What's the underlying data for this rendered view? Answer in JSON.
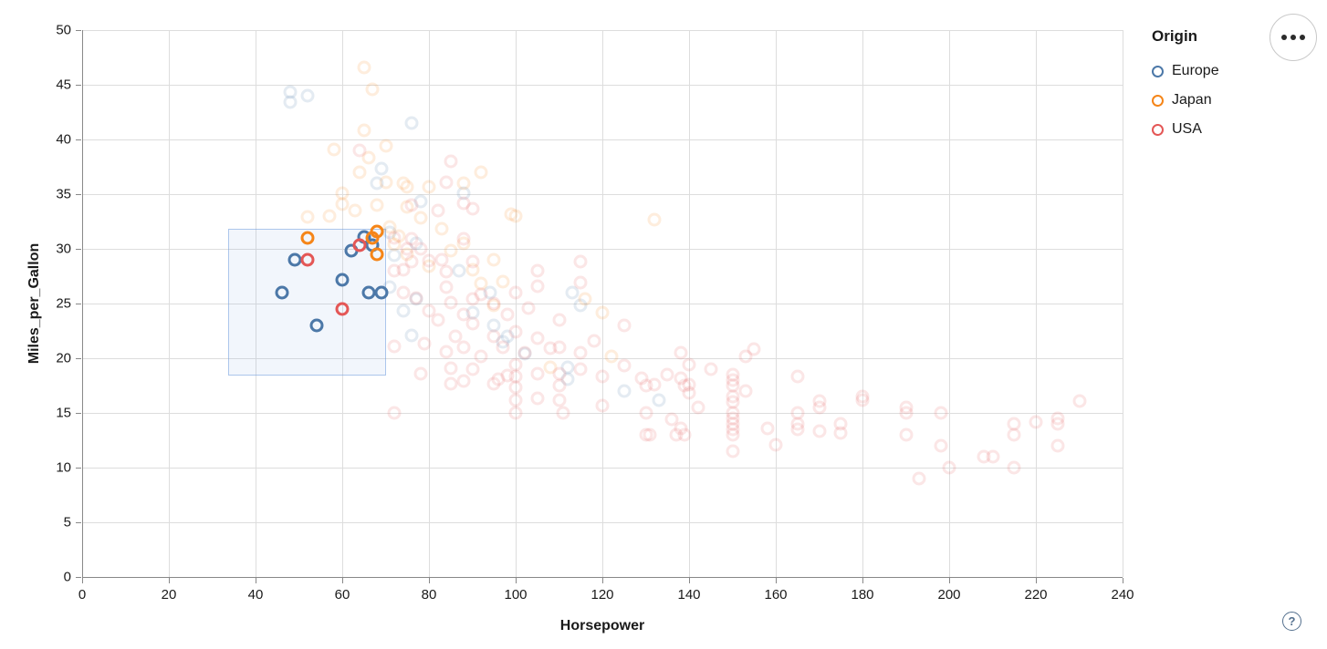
{
  "controls": {
    "menu_button_name": "more options",
    "help_label": "?"
  },
  "chart_data": {
    "type": "scatter",
    "title": "",
    "xlabel": "Horsepower",
    "ylabel": "Miles_per_Gallon",
    "x_domain": [
      0,
      240
    ],
    "y_domain": [
      0,
      50
    ],
    "x_ticks": [
      0,
      20,
      40,
      60,
      80,
      100,
      120,
      140,
      160,
      180,
      200,
      220,
      240
    ],
    "y_ticks": [
      0,
      5,
      10,
      15,
      20,
      25,
      30,
      35,
      40,
      45,
      50
    ],
    "grid": true,
    "legend": {
      "title": "Origin",
      "position": "top-right",
      "entries": [
        {
          "label": "Europe",
          "color": "#4c78a8"
        },
        {
          "label": "Japan",
          "color": "#f58518"
        },
        {
          "label": "USA",
          "color": "#e45756"
        }
      ]
    },
    "brush_selection": {
      "x": [
        33.7,
        70.1
      ],
      "y": [
        18.4,
        31.8
      ]
    },
    "point_style": {
      "shape": "open-circle",
      "faded_opacity": 0.15,
      "selected_opacity": 1
    },
    "series": [
      {
        "name": "Europe",
        "color": "#4c78a8",
        "points": [
          [
            49,
            29,
            1
          ],
          [
            46,
            26,
            1
          ],
          [
            60,
            27.2,
            1
          ],
          [
            54,
            23,
            1
          ],
          [
            66,
            26,
            1
          ],
          [
            69,
            26,
            1
          ],
          [
            62,
            29.8,
            1
          ],
          [
            65,
            31.1,
            1
          ],
          [
            67,
            30.3,
            1
          ],
          [
            48,
            44.3,
            0
          ],
          [
            48,
            43.4,
            0
          ],
          [
            52,
            44,
            0
          ],
          [
            76,
            41.5,
            0
          ],
          [
            69,
            37.3,
            0
          ],
          [
            68,
            36,
            0
          ],
          [
            88,
            35.1,
            0
          ],
          [
            78,
            34.3,
            0
          ],
          [
            71,
            31.5,
            0
          ],
          [
            77,
            30.5,
            0
          ],
          [
            72,
            29.4,
            0
          ],
          [
            71,
            26.5,
            0
          ],
          [
            77,
            25.4,
            0
          ],
          [
            74,
            24.3,
            0
          ],
          [
            87,
            28,
            0
          ],
          [
            94,
            26,
            0
          ],
          [
            113,
            26,
            0
          ],
          [
            115,
            24.8,
            0
          ],
          [
            95,
            23,
            0
          ],
          [
            90,
            24.2,
            0
          ],
          [
            98,
            22,
            0
          ],
          [
            97,
            21.5,
            0
          ],
          [
            76,
            22.1,
            0
          ],
          [
            102,
            20.4,
            0
          ],
          [
            112,
            19.2,
            0
          ],
          [
            112,
            18.1,
            0
          ],
          [
            125,
            17,
            0
          ],
          [
            133,
            16.2,
            0
          ]
        ]
      },
      {
        "name": "Japan",
        "color": "#f58518",
        "points": [
          [
            52,
            31,
            1
          ],
          [
            68,
            31.6,
            1
          ],
          [
            67,
            31,
            1
          ],
          [
            68,
            29.5,
            1
          ],
          [
            65,
            46.6,
            0
          ],
          [
            67,
            44.6,
            0
          ],
          [
            65,
            40.8,
            0
          ],
          [
            70,
            39.4,
            0
          ],
          [
            58,
            39.1,
            0
          ],
          [
            66,
            38.3,
            0
          ],
          [
            64,
            37,
            0
          ],
          [
            92,
            37,
            0
          ],
          [
            70,
            36.1,
            0
          ],
          [
            74,
            36,
            0
          ],
          [
            75,
            35.7,
            0
          ],
          [
            80,
            35.7,
            0
          ],
          [
            88,
            36,
            0
          ],
          [
            60,
            35.1,
            0
          ],
          [
            68,
            34,
            0
          ],
          [
            63,
            33.5,
            0
          ],
          [
            60,
            34.1,
            0
          ],
          [
            99,
            33.2,
            0
          ],
          [
            100,
            33,
            0
          ],
          [
            132,
            32.7,
            0
          ],
          [
            52,
            32.9,
            0
          ],
          [
            57,
            33,
            0
          ],
          [
            75,
            33.8,
            0
          ],
          [
            78,
            32.8,
            0
          ],
          [
            83,
            31.8,
            0
          ],
          [
            71,
            32,
            0
          ],
          [
            73,
            31.2,
            0
          ],
          [
            72,
            30.4,
            0
          ],
          [
            75,
            29.5,
            0
          ],
          [
            80,
            28.4,
            0
          ],
          [
            85,
            29.8,
            0
          ],
          [
            88,
            30.5,
            0
          ],
          [
            90,
            28.1,
            0
          ],
          [
            95,
            29,
            0
          ],
          [
            92,
            26.8,
            0
          ],
          [
            97,
            27,
            0
          ],
          [
            95,
            24.8,
            0
          ],
          [
            116,
            25.4,
            0
          ],
          [
            120,
            24.2,
            0
          ],
          [
            122,
            20.2,
            0
          ],
          [
            108,
            19.2,
            0
          ]
        ]
      },
      {
        "name": "USA",
        "color": "#e45756",
        "points": [
          [
            52,
            29,
            1
          ],
          [
            64,
            30.3,
            1
          ],
          [
            60,
            24.5,
            1
          ],
          [
            64,
            39,
            0
          ],
          [
            85,
            38,
            0
          ],
          [
            84,
            36.1,
            0
          ],
          [
            90,
            33.7,
            0
          ],
          [
            82,
            33.5,
            0
          ],
          [
            88,
            34.2,
            0
          ],
          [
            76,
            34,
            0
          ],
          [
            72,
            31,
            0
          ],
          [
            76,
            30.9,
            0
          ],
          [
            72,
            28,
            0
          ],
          [
            74,
            28.1,
            0
          ],
          [
            75,
            30,
            0
          ],
          [
            76,
            28.8,
            0
          ],
          [
            78,
            30,
            0
          ],
          [
            80,
            28.9,
            0
          ],
          [
            83,
            29,
            0
          ],
          [
            84,
            27.9,
            0
          ],
          [
            88,
            30.9,
            0
          ],
          [
            90,
            28.8,
            0
          ],
          [
            74,
            26,
            0
          ],
          [
            77,
            25.5,
            0
          ],
          [
            80,
            24.3,
            0
          ],
          [
            84,
            26.5,
            0
          ],
          [
            85,
            25.1,
            0
          ],
          [
            88,
            24,
            0
          ],
          [
            90,
            25.4,
            0
          ],
          [
            92,
            25.8,
            0
          ],
          [
            95,
            25,
            0
          ],
          [
            98,
            24,
            0
          ],
          [
            100,
            26,
            0
          ],
          [
            103,
            24.6,
            0
          ],
          [
            105,
            28,
            0
          ],
          [
            115,
            28.8,
            0
          ],
          [
            115,
            26.9,
            0
          ],
          [
            105,
            26.6,
            0
          ],
          [
            110,
            23.5,
            0
          ],
          [
            72,
            21.1,
            0
          ],
          [
            79,
            21.3,
            0
          ],
          [
            82,
            23.5,
            0
          ],
          [
            84,
            20.6,
            0
          ],
          [
            86,
            22,
            0
          ],
          [
            88,
            21,
            0
          ],
          [
            90,
            23.2,
            0
          ],
          [
            92,
            20.2,
            0
          ],
          [
            95,
            22,
            0
          ],
          [
            97,
            21,
            0
          ],
          [
            100,
            22.4,
            0
          ],
          [
            102,
            20.5,
            0
          ],
          [
            105,
            21.8,
            0
          ],
          [
            108,
            20.9,
            0
          ],
          [
            110,
            21,
            0
          ],
          [
            115,
            20.5,
            0
          ],
          [
            118,
            21.6,
            0
          ],
          [
            125,
            23,
            0
          ],
          [
            72,
            15,
            0
          ],
          [
            78,
            18.6,
            0
          ],
          [
            85,
            19.1,
            0
          ],
          [
            85,
            17.7,
            0
          ],
          [
            88,
            17.9,
            0
          ],
          [
            90,
            19,
            0
          ],
          [
            95,
            17.7,
            0
          ],
          [
            96,
            18.1,
            0
          ],
          [
            98,
            18.4,
            0
          ],
          [
            100,
            19.4,
            0
          ],
          [
            100,
            18.3,
            0
          ],
          [
            100,
            17.3,
            0
          ],
          [
            100,
            16.2,
            0
          ],
          [
            100,
            15,
            0
          ],
          [
            105,
            18.6,
            0
          ],
          [
            105,
            16.3,
            0
          ],
          [
            110,
            18.6,
            0
          ],
          [
            110,
            17.5,
            0
          ],
          [
            110,
            16.2,
            0
          ],
          [
            111,
            15,
            0
          ],
          [
            115,
            19,
            0
          ],
          [
            120,
            18.3,
            0
          ],
          [
            120,
            15.7,
            0
          ],
          [
            125,
            19.3,
            0
          ],
          [
            129,
            18.2,
            0
          ],
          [
            130,
            17.5,
            0
          ],
          [
            132,
            17.6,
            0
          ],
          [
            130,
            15,
            0
          ],
          [
            130,
            13,
            0
          ],
          [
            131,
            13,
            0
          ],
          [
            135,
            18.5,
            0
          ],
          [
            136,
            14.4,
            0
          ],
          [
            137,
            13,
            0
          ],
          [
            138,
            13.6,
            0
          ],
          [
            139,
            13,
            0
          ],
          [
            138,
            20.5,
            0
          ],
          [
            140,
            19.4,
            0
          ],
          [
            138,
            18.2,
            0
          ],
          [
            139,
            17.5,
            0
          ],
          [
            140,
            17.6,
            0
          ],
          [
            140,
            16.8,
            0
          ],
          [
            142,
            15.5,
            0
          ],
          [
            145,
            19,
            0
          ],
          [
            150,
            18.5,
            0
          ],
          [
            150,
            18,
            0
          ],
          [
            150,
            17.5,
            0
          ],
          [
            150,
            16.5,
            0
          ],
          [
            150,
            16,
            0
          ],
          [
            150,
            15,
            0
          ],
          [
            150,
            14.5,
            0
          ],
          [
            150,
            14,
            0
          ],
          [
            150,
            13.5,
            0
          ],
          [
            150,
            13,
            0
          ],
          [
            150,
            11.5,
            0
          ],
          [
            155,
            20.8,
            0
          ],
          [
            153,
            20.2,
            0
          ],
          [
            153,
            17,
            0
          ],
          [
            158,
            13.6,
            0
          ],
          [
            160,
            12.1,
            0
          ],
          [
            165,
            18.3,
            0
          ],
          [
            165,
            15,
            0
          ],
          [
            165,
            14,
            0
          ],
          [
            165,
            13.5,
            0
          ],
          [
            170,
            16.1,
            0
          ],
          [
            170,
            15.5,
            0
          ],
          [
            170,
            13.3,
            0
          ],
          [
            175,
            14,
            0
          ],
          [
            175,
            13.2,
            0
          ],
          [
            180,
            16.5,
            0
          ],
          [
            180,
            16.2,
            0
          ],
          [
            190,
            15.5,
            0
          ],
          [
            190,
            15,
            0
          ],
          [
            190,
            13,
            0
          ],
          [
            198,
            15,
            0
          ],
          [
            198,
            12,
            0
          ],
          [
            193,
            9,
            0
          ],
          [
            200,
            10,
            0
          ],
          [
            208,
            11,
            0
          ],
          [
            210,
            11,
            0
          ],
          [
            215,
            14,
            0
          ],
          [
            215,
            13,
            0
          ],
          [
            215,
            10,
            0
          ],
          [
            220,
            14.2,
            0
          ],
          [
            225,
            14,
            0
          ],
          [
            225,
            14.5,
            0
          ],
          [
            225,
            12,
            0
          ],
          [
            230,
            16.1,
            0
          ]
        ]
      }
    ]
  }
}
